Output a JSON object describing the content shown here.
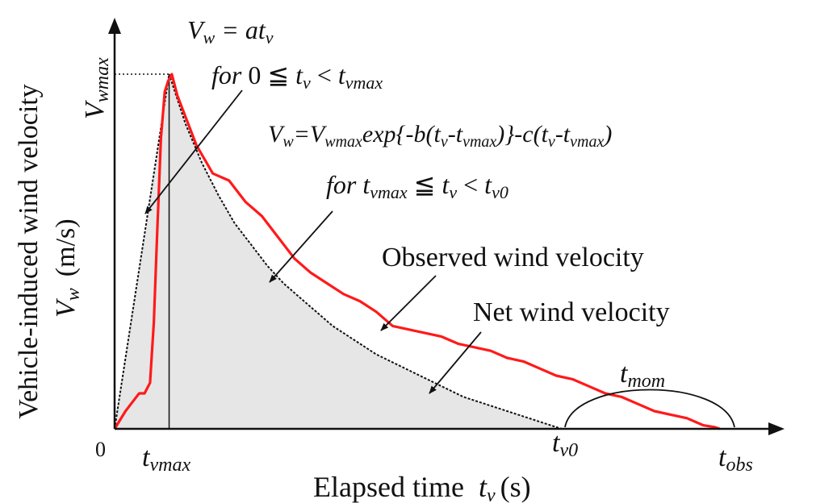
{
  "chart_data": {
    "type": "line",
    "title": "",
    "xlabel": "Elapsed time",
    "xlabel_var": "t",
    "xlabel_var_sub": "v",
    "xlabel_unit": "(s)",
    "ylabel": "Vehicle-induced wind velocity",
    "ylabel_var": "V",
    "ylabel_var_sub": "w",
    "ylabel_unit": "(m/s)",
    "origin_label": "0",
    "x_ticks": [
      {
        "main": "t",
        "sub": "vmax"
      },
      {
        "main": "t",
        "sub": "v0"
      },
      {
        "main": "t",
        "sub": "obs"
      }
    ],
    "y_tick": {
      "main": "V",
      "sub": "wmax"
    },
    "x_markers": {
      "t_vmax": 1.0,
      "t_v0": 8.2,
      "t_obs": 11.0
    },
    "xlim": [
      0,
      12.2
    ],
    "ylim": [
      0,
      1.0
    ],
    "y_max": 1.0,
    "grid": false,
    "legend": "none",
    "colors": {
      "observed": "#ff1a1a",
      "net": "#111111",
      "fill": "#e6e6e6",
      "axes": "#111111"
    },
    "series": [
      {
        "name": "Observed wind velocity",
        "x": [
          0,
          0.2,
          0.35,
          0.45,
          0.55,
          0.65,
          0.72,
          0.78,
          0.85,
          0.92,
          0.98,
          1.05,
          1.15,
          1.3,
          1.5,
          1.8,
          2.1,
          2.4,
          2.7,
          3.0,
          3.3,
          3.6,
          3.9,
          4.2,
          4.5,
          4.8,
          5.1,
          5.4,
          5.7,
          6.0,
          6.3,
          6.6,
          6.9,
          7.2,
          7.5,
          7.8,
          8.1,
          8.4,
          8.7,
          9.0,
          9.3,
          9.6,
          9.9,
          10.2,
          10.5,
          10.8,
          11.0,
          11.1
        ],
        "y": [
          0,
          0.05,
          0.08,
          0.1,
          0.1,
          0.13,
          0.3,
          0.55,
          0.82,
          0.95,
          0.98,
          1.0,
          0.94,
          0.88,
          0.8,
          0.72,
          0.7,
          0.64,
          0.6,
          0.54,
          0.48,
          0.44,
          0.41,
          0.38,
          0.36,
          0.33,
          0.29,
          0.28,
          0.27,
          0.26,
          0.24,
          0.23,
          0.22,
          0.2,
          0.19,
          0.17,
          0.15,
          0.14,
          0.12,
          0.1,
          0.09,
          0.07,
          0.05,
          0.04,
          0.03,
          0.01,
          0.005,
          0
        ]
      },
      {
        "name": "Net wind velocity",
        "x": [
          0,
          0.25,
          0.5,
          0.75,
          1.0,
          1.3,
          1.6,
          1.9,
          2.2,
          2.5,
          2.8,
          3.1,
          3.4,
          3.7,
          4.0,
          4.4,
          4.8,
          5.2,
          5.6,
          6.0,
          6.4,
          6.8,
          7.2,
          7.6,
          8.0,
          8.2
        ],
        "y": [
          0,
          0.25,
          0.5,
          0.75,
          1.0,
          0.86,
          0.75,
          0.66,
          0.58,
          0.52,
          0.46,
          0.41,
          0.37,
          0.33,
          0.29,
          0.25,
          0.21,
          0.18,
          0.15,
          0.12,
          0.09,
          0.07,
          0.05,
          0.03,
          0.01,
          0
        ]
      }
    ],
    "annotations": {
      "eq1": "V_w = at_v",
      "eq1_cond": "for 0 ≦ t_v < t_vmax",
      "eq2": "V_w=V_wmax exp{-b(t_v-t_vmax)}-c(t_v-t_vmax)",
      "eq2_cond": "for t_vmax ≦ t_v < t_v0",
      "t_mom": {
        "main": "t",
        "sub": "mom"
      }
    }
  }
}
